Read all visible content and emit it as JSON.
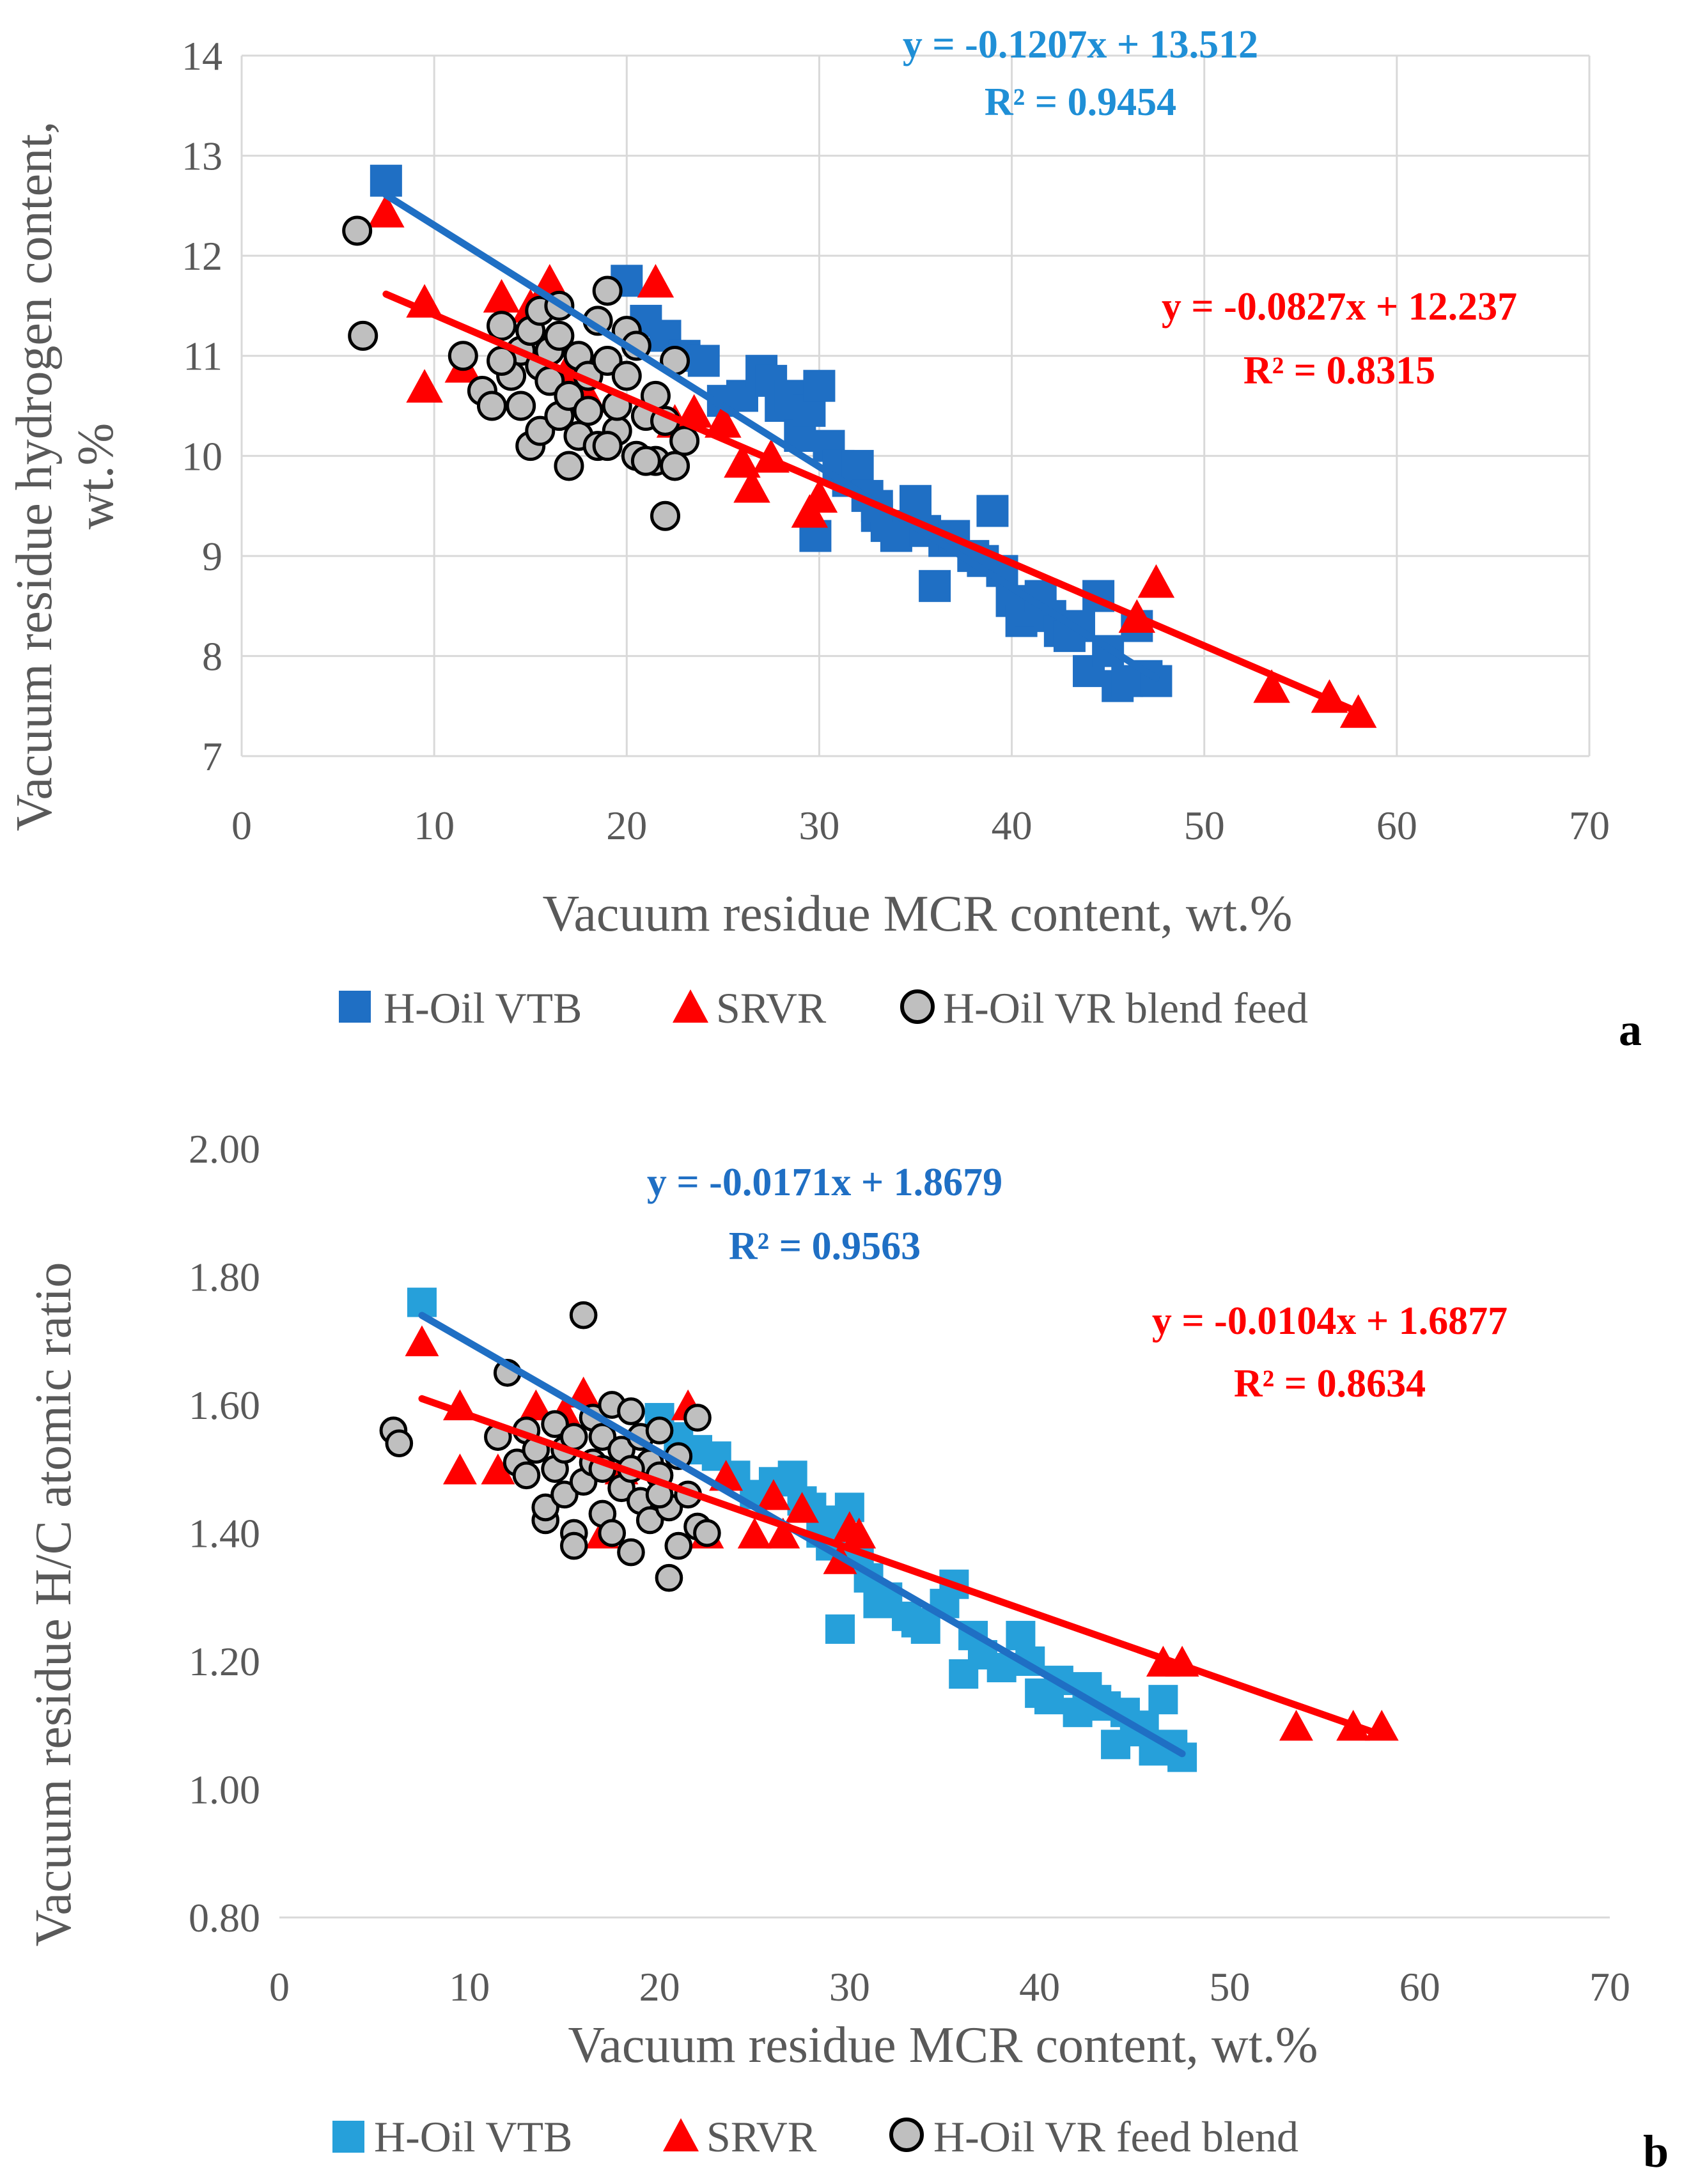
{
  "chart_data": [
    {
      "type": "scatter",
      "panel_label": "a",
      "title": "",
      "xlabel": "Vacuum residue MCR content, wt.%",
      "ylabel_lines": [
        "Vacuum residue hydrogen content,",
        "wt.%"
      ],
      "xlim": [
        0,
        70
      ],
      "ylim": [
        7,
        14
      ],
      "xticks": [
        "0",
        "10",
        "20",
        "30",
        "40",
        "50",
        "60",
        "70"
      ],
      "yticks": [
        "7",
        "8",
        "9",
        "10",
        "11",
        "12",
        "13",
        "14"
      ],
      "grid": true,
      "legend_position": "bottom",
      "colors": {
        "vtb": "#1f6fc4",
        "srvr": "#ff0000",
        "blend": "#bfbfbf"
      },
      "series": [
        {
          "name": "H-Oil VTB",
          "marker": "square",
          "points": [
            [
              7.5,
              12.75
            ],
            [
              20,
              11.75
            ],
            [
              21,
              11.35
            ],
            [
              22,
              11.2
            ],
            [
              23,
              11
            ],
            [
              24,
              10.95
            ],
            [
              25,
              10.55
            ],
            [
              26,
              10.6
            ],
            [
              27,
              10.85
            ],
            [
              27.5,
              10.75
            ],
            [
              28,
              10.5
            ],
            [
              28.5,
              10.6
            ],
            [
              29,
              10.2
            ],
            [
              29.5,
              10.45
            ],
            [
              30,
              10.7
            ],
            [
              30.5,
              10.1
            ],
            [
              31,
              9.9
            ],
            [
              31.5,
              9.75
            ],
            [
              32,
              9.9
            ],
            [
              32.5,
              9.6
            ],
            [
              33,
              9.4
            ],
            [
              33.5,
              9.3
            ],
            [
              34,
              9.2
            ],
            [
              35,
              9.55
            ],
            [
              35.5,
              9.25
            ],
            [
              36,
              8.7
            ],
            [
              36.5,
              9.15
            ],
            [
              37,
              9.2
            ],
            [
              38,
              9.0
            ],
            [
              38.5,
              8.95
            ],
            [
              39,
              9.45
            ],
            [
              39.5,
              8.85
            ],
            [
              40,
              8.55
            ],
            [
              40.5,
              8.35
            ],
            [
              41,
              8.45
            ],
            [
              41.5,
              8.6
            ],
            [
              42,
              8.4
            ],
            [
              42.5,
              8.25
            ],
            [
              43,
              8.2
            ],
            [
              43.5,
              8.3
            ],
            [
              44,
              7.85
            ],
            [
              44.5,
              8.6
            ],
            [
              45,
              8.05
            ],
            [
              45.5,
              7.7
            ],
            [
              46,
              7.75
            ],
            [
              46.5,
              8.3
            ],
            [
              47,
              7.8
            ],
            [
              47.5,
              7.75
            ],
            [
              29.8,
              9.2
            ],
            [
              33,
              9.5
            ]
          ]
        },
        {
          "name": "SRVR",
          "marker": "triangle",
          "points": [
            [
              7.5,
              12.45
            ],
            [
              9.5,
              11.55
            ],
            [
              9.5,
              10.7
            ],
            [
              11.5,
              10.9
            ],
            [
              13.5,
              11.6
            ],
            [
              15,
              11.5
            ],
            [
              16,
              11.75
            ],
            [
              21.5,
              11.75
            ],
            [
              22.5,
              10.35
            ],
            [
              23.5,
              10.45
            ],
            [
              25,
              10.35
            ],
            [
              26,
              9.95
            ],
            [
              26.5,
              9.7
            ],
            [
              27.5,
              10.0
            ],
            [
              29.5,
              9.45
            ],
            [
              30,
              9.6
            ],
            [
              46.5,
              8.4
            ],
            [
              47.5,
              8.75
            ],
            [
              53.5,
              7.7
            ],
            [
              56.5,
              7.6
            ],
            [
              58,
              7.45
            ],
            [
              17,
              10.9
            ],
            [
              18,
              10.6
            ]
          ]
        },
        {
          "name": "H-Oil VR blend feed",
          "marker": "circle",
          "points": [
            [
              6,
              12.25
            ],
            [
              6.3,
              11.2
            ],
            [
              11.5,
              11.0
            ],
            [
              12.5,
              10.65
            ],
            [
              13,
              10.5
            ],
            [
              13.5,
              11.3
            ],
            [
              14,
              10.8
            ],
            [
              14.5,
              11.05
            ],
            [
              14.5,
              10.5
            ],
            [
              15,
              10.1
            ],
            [
              15,
              11.25
            ],
            [
              15.5,
              10.25
            ],
            [
              15.5,
              10.9
            ],
            [
              16,
              11.05
            ],
            [
              16,
              10.75
            ],
            [
              16.5,
              10.4
            ],
            [
              16.5,
              11.2
            ],
            [
              17,
              10.6
            ],
            [
              17,
              9.9
            ],
            [
              17.5,
              11.0
            ],
            [
              17.5,
              10.2
            ],
            [
              18,
              10.45
            ],
            [
              18,
              10.8
            ],
            [
              18.5,
              11.35
            ],
            [
              18.5,
              10.1
            ],
            [
              19,
              11.65
            ],
            [
              19,
              10.95
            ],
            [
              19.5,
              10.25
            ],
            [
              19.5,
              10.5
            ],
            [
              20,
              11.25
            ],
            [
              20,
              10.8
            ],
            [
              20.5,
              10.0
            ],
            [
              20.5,
              11.1
            ],
            [
              21,
              10.4
            ],
            [
              21.5,
              10.6
            ],
            [
              21.5,
              9.95
            ],
            [
              22,
              9.4
            ],
            [
              22,
              10.35
            ],
            [
              22.5,
              10.95
            ],
            [
              22.5,
              9.9
            ],
            [
              23,
              10.15
            ],
            [
              13.5,
              10.95
            ],
            [
              15.5,
              11.45
            ],
            [
              16.5,
              11.5
            ],
            [
              19,
              10.1
            ],
            [
              21,
              9.95
            ]
          ]
        }
      ],
      "trendlines": [
        {
          "series": "H-Oil VTB",
          "slope": -0.1207,
          "intercept": 13.512,
          "x_range": [
            7.5,
            47.5
          ],
          "equation": "y = -0.1207x + 13.512",
          "r2": "R² = 0.9454"
        },
        {
          "series": "SRVR",
          "slope": -0.0827,
          "intercept": 12.237,
          "x_range": [
            7.5,
            58
          ],
          "equation": "y = -0.0827x + 12.237",
          "r2": "R² = 0.8315"
        }
      ]
    },
    {
      "type": "scatter",
      "panel_label": "b",
      "title": "",
      "xlabel": "Vacuum residue MCR content, wt.%",
      "ylabel_lines": [
        "Vacuum residue H/C atomic ratio"
      ],
      "xlim": [
        0,
        70
      ],
      "ylim": [
        0.8,
        2.0
      ],
      "xticks": [
        "0",
        "10",
        "20",
        "30",
        "40",
        "50",
        "60",
        "70"
      ],
      "yticks": [
        "0.80",
        "1.00",
        "1.20",
        "1.40",
        "1.60",
        "1.80",
        "2.00"
      ],
      "grid": false,
      "legend_position": "bottom",
      "colors": {
        "vtb": "#26a0da",
        "srvr": "#ff0000",
        "blend": "#bfbfbf",
        "vtb_trend": "#1f6fc4"
      },
      "series": [
        {
          "name": "H-Oil VTB",
          "marker": "square",
          "points": [
            [
              7.5,
              1.76
            ],
            [
              20,
              1.58
            ],
            [
              21,
              1.55
            ],
            [
              22,
              1.53
            ],
            [
              23,
              1.52
            ],
            [
              24,
              1.49
            ],
            [
              25,
              1.46
            ],
            [
              26,
              1.48
            ],
            [
              27,
              1.49
            ],
            [
              27.5,
              1.45
            ],
            [
              28,
              1.44
            ],
            [
              28.5,
              1.4
            ],
            [
              29,
              1.38
            ],
            [
              29.5,
              1.42
            ],
            [
              30,
              1.44
            ],
            [
              30.5,
              1.36
            ],
            [
              31,
              1.33
            ],
            [
              31.5,
              1.29
            ],
            [
              32,
              1.3
            ],
            [
              33,
              1.27
            ],
            [
              34,
              1.25
            ],
            [
              35,
              1.29
            ],
            [
              35.5,
              1.32
            ],
            [
              36,
              1.18
            ],
            [
              36.5,
              1.24
            ],
            [
              37,
              1.21
            ],
            [
              38,
              1.19
            ],
            [
              39,
              1.24
            ],
            [
              39.5,
              1.2
            ],
            [
              40,
              1.15
            ],
            [
              40.5,
              1.14
            ],
            [
              41,
              1.17
            ],
            [
              42,
              1.12
            ],
            [
              42.5,
              1.16
            ],
            [
              43,
              1.14
            ],
            [
              43.5,
              1.13
            ],
            [
              44,
              1.07
            ],
            [
              44.5,
              1.12
            ],
            [
              45,
              1.09
            ],
            [
              45.5,
              1.1
            ],
            [
              46,
              1.06
            ],
            [
              46.5,
              1.14
            ],
            [
              47,
              1.07
            ],
            [
              47.5,
              1.05
            ],
            [
              29.5,
              1.25
            ],
            [
              33.5,
              1.26
            ]
          ]
        },
        {
          "name": "SRVR",
          "marker": "triangle",
          "points": [
            [
              7.5,
              1.7
            ],
            [
              9.5,
              1.6
            ],
            [
              9.5,
              1.5
            ],
            [
              11.5,
              1.5
            ],
            [
              13.5,
              1.6
            ],
            [
              15,
              1.59
            ],
            [
              16,
              1.62
            ],
            [
              21.5,
              1.6
            ],
            [
              22.5,
              1.4
            ],
            [
              23.5,
              1.49
            ],
            [
              25,
              1.4
            ],
            [
              26,
              1.46
            ],
            [
              26.5,
              1.4
            ],
            [
              27.5,
              1.44
            ],
            [
              29.5,
              1.36
            ],
            [
              30,
              1.41
            ],
            [
              30.5,
              1.4
            ],
            [
              46.5,
              1.2
            ],
            [
              47.5,
              1.2
            ],
            [
              53.5,
              1.1
            ],
            [
              56.5,
              1.1
            ],
            [
              58,
              1.1
            ],
            [
              17,
              1.4
            ],
            [
              18,
              1.5
            ]
          ]
        },
        {
          "name": "H-Oil VR feed blend",
          "marker": "circle",
          "points": [
            [
              6,
              1.56
            ],
            [
              6.3,
              1.54
            ],
            [
              11.5,
              1.55
            ],
            [
              12,
              1.65
            ],
            [
              12.5,
              1.51
            ],
            [
              13,
              1.49
            ],
            [
              13,
              1.56
            ],
            [
              13.5,
              1.53
            ],
            [
              14,
              1.42
            ],
            [
              14,
              1.44
            ],
            [
              14.5,
              1.5
            ],
            [
              14.5,
              1.57
            ],
            [
              15,
              1.46
            ],
            [
              15,
              1.53
            ],
            [
              15.5,
              1.4
            ],
            [
              15.5,
              1.55
            ],
            [
              16,
              1.74
            ],
            [
              16,
              1.48
            ],
            [
              16.5,
              1.51
            ],
            [
              16.5,
              1.58
            ],
            [
              17,
              1.43
            ],
            [
              17,
              1.55
            ],
            [
              17.5,
              1.4
            ],
            [
              17.5,
              1.6
            ],
            [
              18,
              1.47
            ],
            [
              18,
              1.53
            ],
            [
              18.5,
              1.37
            ],
            [
              18.5,
              1.59
            ],
            [
              19,
              1.45
            ],
            [
              19,
              1.55
            ],
            [
              19.5,
              1.42
            ],
            [
              19.5,
              1.51
            ],
            [
              20,
              1.49
            ],
            [
              20,
              1.56
            ],
            [
              20.5,
              1.33
            ],
            [
              20.5,
              1.44
            ],
            [
              21,
              1.38
            ],
            [
              21,
              1.52
            ],
            [
              21.5,
              1.46
            ],
            [
              22,
              1.41
            ],
            [
              22,
              1.58
            ],
            [
              22.5,
              1.4
            ],
            [
              15.5,
              1.38
            ],
            [
              17,
              1.5
            ],
            [
              18.5,
              1.5
            ],
            [
              20,
              1.46
            ]
          ]
        }
      ],
      "trendlines": [
        {
          "series": "H-Oil VTB",
          "slope": -0.0171,
          "intercept": 1.8679,
          "x_range": [
            7.5,
            47.5
          ],
          "equation": "y = -0.0171x + 1.8679",
          "r2": "R² = 0.9563"
        },
        {
          "series": "SRVR",
          "slope": -0.0104,
          "intercept": 1.6877,
          "x_range": [
            7.5,
            58
          ],
          "equation": "y = -0.0104x + 1.6877",
          "r2": "R² = 0.8634"
        }
      ]
    }
  ]
}
